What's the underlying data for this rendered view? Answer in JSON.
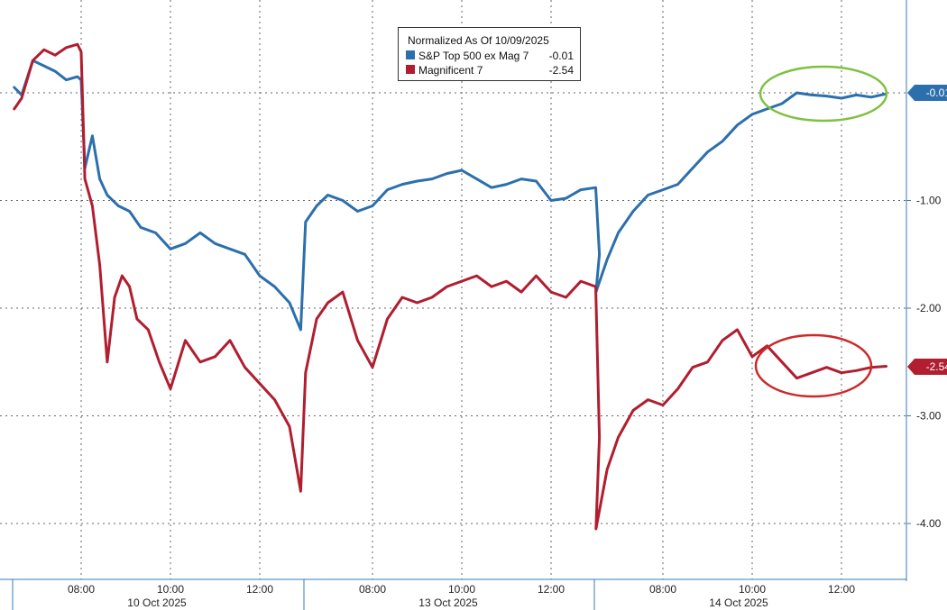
{
  "chart_data": {
    "type": "line",
    "title": "Normalized As Of 10/09/2025",
    "ylim": [
      -4.5,
      0.8
    ],
    "y_ticks": [
      {
        "value": -1.0,
        "label": "-1.00"
      },
      {
        "value": -2.0,
        "label": "-2.00"
      },
      {
        "value": -3.0,
        "label": "-3.00"
      },
      {
        "value": -4.0,
        "label": "-4.00"
      }
    ],
    "sessions": [
      {
        "label": "10 Oct 2025",
        "start": "09:30",
        "end": "13:30"
      },
      {
        "label": "13 Oct 2025",
        "start": "06:30",
        "end": "13:30"
      },
      {
        "label": "14 Oct 2025",
        "start": "06:30",
        "end": "13:00"
      }
    ],
    "x_ticks": [
      "08:00",
      "10:00",
      "12:00",
      "08:00",
      "10:00",
      "12:00",
      "08:00",
      "10:00",
      "12:00"
    ],
    "grid": true,
    "legend_position": "top-center",
    "series": [
      {
        "name": "S&P Top 500 ex Mag 7",
        "last_value": "-0.01",
        "color": "#2b6fad",
        "points": [
          [
            "10 Oct 2025 06:30",
            0.05
          ],
          [
            "06:40",
            -0.02
          ],
          [
            "06:55",
            0.3
          ],
          [
            "07:10",
            0.25
          ],
          [
            "07:25",
            0.2
          ],
          [
            "07:40",
            0.12
          ],
          [
            "07:55",
            0.15
          ],
          [
            "08:00",
            0.12
          ],
          [
            "08:05",
            -0.7
          ],
          [
            "08:15",
            -0.4
          ],
          [
            "08:25",
            -0.8
          ],
          [
            "08:35",
            -0.95
          ],
          [
            "08:50",
            -1.05
          ],
          [
            "09:05",
            -1.1
          ],
          [
            "09:20",
            -1.25
          ],
          [
            "09:40",
            -1.3
          ],
          [
            "10:00",
            -1.45
          ],
          [
            "10:20",
            -1.4
          ],
          [
            "10:40",
            -1.3
          ],
          [
            "11:00",
            -1.4
          ],
          [
            "11:20",
            -1.45
          ],
          [
            "11:40",
            -1.5
          ],
          [
            "12:00",
            -1.7
          ],
          [
            "12:20",
            -1.8
          ],
          [
            "12:40",
            -1.95
          ],
          [
            "12:55",
            -2.2
          ],
          [
            "13 Oct 2025 06:30",
            -1.2
          ],
          [
            "06:45",
            -1.05
          ],
          [
            "07:00",
            -0.95
          ],
          [
            "07:20",
            -1.0
          ],
          [
            "07:40",
            -1.1
          ],
          [
            "08:00",
            -1.05
          ],
          [
            "08:20",
            -0.9
          ],
          [
            "08:40",
            -0.85
          ],
          [
            "09:00",
            -0.82
          ],
          [
            "09:20",
            -0.8
          ],
          [
            "09:40",
            -0.75
          ],
          [
            "10:00",
            -0.72
          ],
          [
            "10:20",
            -0.8
          ],
          [
            "10:40",
            -0.88
          ],
          [
            "11:00",
            -0.85
          ],
          [
            "11:20",
            -0.8
          ],
          [
            "11:40",
            -0.82
          ],
          [
            "12:00",
            -1.0
          ],
          [
            "12:20",
            -0.98
          ],
          [
            "12:40",
            -0.9
          ],
          [
            "13:00",
            -0.88
          ],
          [
            "13:05",
            -1.5
          ],
          [
            "14 Oct 2025 06:30",
            -1.85
          ],
          [
            "06:45",
            -1.55
          ],
          [
            "07:00",
            -1.3
          ],
          [
            "07:20",
            -1.1
          ],
          [
            "07:40",
            -0.95
          ],
          [
            "08:00",
            -0.9
          ],
          [
            "08:20",
            -0.85
          ],
          [
            "08:40",
            -0.7
          ],
          [
            "09:00",
            -0.55
          ],
          [
            "09:20",
            -0.45
          ],
          [
            "09:40",
            -0.3
          ],
          [
            "10:00",
            -0.2
          ],
          [
            "10:20",
            -0.15
          ],
          [
            "10:40",
            -0.1
          ],
          [
            "11:00",
            0.0
          ],
          [
            "11:20",
            -0.02
          ],
          [
            "11:40",
            -0.03
          ],
          [
            "12:00",
            -0.05
          ],
          [
            "12:20",
            -0.02
          ],
          [
            "12:40",
            -0.04
          ],
          [
            "13:00",
            -0.01
          ]
        ]
      },
      {
        "name": "Magnificent 7",
        "last_value": "-2.54",
        "color": "#b01e2f",
        "points": [
          [
            "10 Oct 2025 06:30",
            -0.15
          ],
          [
            "06:40",
            -0.05
          ],
          [
            "06:55",
            0.3
          ],
          [
            "07:10",
            0.4
          ],
          [
            "07:25",
            0.35
          ],
          [
            "07:40",
            0.42
          ],
          [
            "07:55",
            0.45
          ],
          [
            "08:00",
            0.38
          ],
          [
            "08:05",
            -0.8
          ],
          [
            "08:15",
            -1.05
          ],
          [
            "08:25",
            -1.6
          ],
          [
            "08:35",
            -2.5
          ],
          [
            "08:45",
            -1.9
          ],
          [
            "08:55",
            -1.7
          ],
          [
            "09:05",
            -1.8
          ],
          [
            "09:15",
            -2.1
          ],
          [
            "09:30",
            -2.2
          ],
          [
            "09:45",
            -2.5
          ],
          [
            "10:00",
            -2.75
          ],
          [
            "10:20",
            -2.3
          ],
          [
            "10:40",
            -2.5
          ],
          [
            "11:00",
            -2.45
          ],
          [
            "11:20",
            -2.3
          ],
          [
            "11:40",
            -2.55
          ],
          [
            "12:00",
            -2.7
          ],
          [
            "12:20",
            -2.85
          ],
          [
            "12:40",
            -3.1
          ],
          [
            "12:55",
            -3.7
          ],
          [
            "13 Oct 2025 06:30",
            -2.6
          ],
          [
            "06:45",
            -2.1
          ],
          [
            "07:00",
            -1.95
          ],
          [
            "07:20",
            -1.85
          ],
          [
            "07:40",
            -2.3
          ],
          [
            "08:00",
            -2.55
          ],
          [
            "08:20",
            -2.1
          ],
          [
            "08:40",
            -1.9
          ],
          [
            "09:00",
            -1.95
          ],
          [
            "09:20",
            -1.9
          ],
          [
            "09:40",
            -1.8
          ],
          [
            "10:00",
            -1.75
          ],
          [
            "10:20",
            -1.7
          ],
          [
            "10:40",
            -1.8
          ],
          [
            "11:00",
            -1.75
          ],
          [
            "11:20",
            -1.85
          ],
          [
            "11:40",
            -1.7
          ],
          [
            "12:00",
            -1.85
          ],
          [
            "12:20",
            -1.9
          ],
          [
            "12:40",
            -1.75
          ],
          [
            "13:00",
            -1.8
          ],
          [
            "13:05",
            -3.2
          ],
          [
            "14 Oct 2025 06:30",
            -4.05
          ],
          [
            "06:45",
            -3.5
          ],
          [
            "07:00",
            -3.2
          ],
          [
            "07:20",
            -2.95
          ],
          [
            "07:40",
            -2.85
          ],
          [
            "08:00",
            -2.9
          ],
          [
            "08:20",
            -2.75
          ],
          [
            "08:40",
            -2.55
          ],
          [
            "09:00",
            -2.5
          ],
          [
            "09:20",
            -2.3
          ],
          [
            "09:40",
            -2.2
          ],
          [
            "10:00",
            -2.45
          ],
          [
            "10:20",
            -2.35
          ],
          [
            "10:40",
            -2.5
          ],
          [
            "11:00",
            -2.65
          ],
          [
            "11:20",
            -2.6
          ],
          [
            "11:40",
            -2.55
          ],
          [
            "12:00",
            -2.6
          ],
          [
            "12:20",
            -2.58
          ],
          [
            "12:40",
            -2.55
          ],
          [
            "13:00",
            -2.54
          ]
        ]
      }
    ],
    "annotations": [
      {
        "shape": "ellipse",
        "color": "#7dc241",
        "series": "S&P Top 500 ex Mag 7"
      },
      {
        "shape": "ellipse",
        "color": "#cc2a2a",
        "series": "Magnificent 7"
      }
    ]
  }
}
